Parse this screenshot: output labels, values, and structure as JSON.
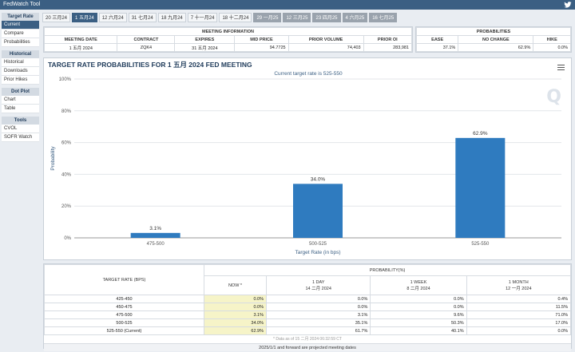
{
  "app": {
    "title": "FedWatch Tool"
  },
  "sidebar": {
    "sections": [
      {
        "title": "Target Rate",
        "items": [
          "Current",
          "Compare",
          "Probabilities"
        ]
      },
      {
        "title": "Historical",
        "items": [
          "Historical",
          "Downloads",
          "Prior Hikes"
        ]
      },
      {
        "title": "Dot Plot",
        "items": [
          "Chart",
          "Table"
        ]
      },
      {
        "title": "Tools",
        "items": [
          "CVOL",
          "SOFR Watch"
        ]
      }
    ]
  },
  "tabs": [
    "20 三月24",
    "1 五月24",
    "12 六月24",
    "31 七月24",
    "18 九月24",
    "7 十一月24",
    "18 十二月24",
    "29 一月25",
    "12 三月25",
    "23 四月25",
    "4 六月25",
    "16 七月25"
  ],
  "meeting_info": {
    "header": "MEETING INFORMATION",
    "columns": [
      "MEETING DATE",
      "CONTRACT",
      "EXPIRES",
      "MID PRICE",
      "PRIOR VOLUME",
      "PRIOR OI"
    ],
    "row": [
      "1 五月 2024",
      "ZQK4",
      "31 五月 2024",
      "94.7725",
      "74,403",
      "283,981"
    ]
  },
  "probabilities": {
    "header": "PROBABILITIES",
    "columns": [
      "EASE",
      "NO CHANGE",
      "HIKE"
    ],
    "row": [
      "37.1%",
      "62.9%",
      "0.0%"
    ]
  },
  "chart": {
    "title": "TARGET RATE PROBABILITIES FOR 1 五月 2024 FED MEETING",
    "subtitle": "Current target rate is 525-550",
    "logo": "Q"
  },
  "chart_data": {
    "type": "bar",
    "categories": [
      "475-500",
      "500-525",
      "525-550"
    ],
    "values": [
      3.1,
      34.0,
      62.9
    ],
    "data_labels": [
      "3.1%",
      "34.0%",
      "62.9%"
    ],
    "xlabel": "Target Rate (in bps)",
    "ylabel": "Probability",
    "ylim": [
      0,
      100
    ],
    "yticks": [
      "0%",
      "20%",
      "40%",
      "60%",
      "80%",
      "100%"
    ],
    "bar_color": "#2f7bbf",
    "grid": true
  },
  "prob_table": {
    "target_header": "TARGET RATE (BPS)",
    "prob_header": "PROBABILITY(%)",
    "subcols": [
      "NOW *",
      "1 DAY\n14 二月 2024",
      "1 WEEK\n8 二月 2024",
      "1 MONTH\n12 一月 2024"
    ],
    "rows": [
      [
        "425-450",
        "0.0%",
        "0.0%",
        "0.0%",
        "0.4%"
      ],
      [
        "450-475",
        "0.0%",
        "0.0%",
        "0.0%",
        "11.5%"
      ],
      [
        "475-500",
        "3.1%",
        "3.1%",
        "9.6%",
        "71.0%"
      ],
      [
        "500-525",
        "34.0%",
        "35.1%",
        "50.3%",
        "17.0%"
      ],
      [
        "525-550 (Current)",
        "62.9%",
        "61.7%",
        "40.1%",
        "0.0%"
      ]
    ],
    "footnote": "* Data as of 15 二月 2024 06:32:59 CT",
    "footer": "2025/1/1 and forward are projected meeting dates"
  }
}
